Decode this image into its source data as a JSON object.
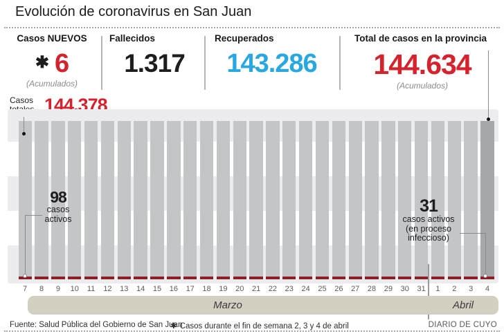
{
  "title": "Evolución de coronavirus en San Juan",
  "stats": [
    {
      "label": "Casos NUEVOS",
      "prefix": "✱",
      "value": "6",
      "sub": "(Acumulados)",
      "color": "#d5232d"
    },
    {
      "label": "Fallecidos",
      "value": "1.317",
      "color": "#1d1d1f"
    },
    {
      "label": "Recuperados",
      "value": "143.286",
      "color": "#29a7e1"
    },
    {
      "label": "Total de casos en la provincia",
      "value": "144.634",
      "sub": "(Acumulados)",
      "color": "#d5232d"
    }
  ],
  "chart": {
    "total_callout": {
      "label_line1": "Casos",
      "label_line2": "totales",
      "value": "144.378"
    },
    "annotation_left": {
      "value": "98",
      "line1": "casos",
      "line2": "activos"
    },
    "annotation_right": {
      "value": "31",
      "line1": "casos activos",
      "line2": "(en proceso",
      "line3": "infeccioso)"
    },
    "months": [
      {
        "label": "Marzo"
      },
      {
        "label": "Abril"
      }
    ]
  },
  "chart_data": {
    "type": "bar",
    "title": "Evolución de coronavirus en San Juan",
    "categories": [
      "7",
      "8",
      "9",
      "10",
      "11",
      "12",
      "13",
      "14",
      "15",
      "16",
      "17",
      "18",
      "19",
      "20",
      "21",
      "22",
      "23",
      "24",
      "25",
      "26",
      "27",
      "28",
      "29",
      "30",
      "31",
      "1",
      "2",
      "3",
      "4"
    ],
    "category_month_groups": [
      {
        "label": "Marzo",
        "from": "7",
        "to": "31",
        "count": 25
      },
      {
        "label": "Abril",
        "from": "1",
        "to": "4",
        "count": 4
      }
    ],
    "series": [
      {
        "name": "Casos totales (acumulados)",
        "color": "#c4c5c7",
        "highlight_last_color": "#a5a7aa",
        "labeled_points": [
          {
            "category": "7 Marzo",
            "value": 144378
          },
          {
            "category": "4 Abril",
            "value": 144634
          }
        ],
        "note": "all 29 bars drawn at nearly equal full height; only first and last values are labeled"
      },
      {
        "name": "Casos activos",
        "color": "#8e1e24",
        "labeled_points": [
          {
            "category": "7 Marzo",
            "value": 98
          },
          {
            "category": "4 Abril",
            "value": 31
          }
        ],
        "note": "thin dark-red segment at the base of every bar"
      }
    ],
    "legend": "none",
    "grid": "horizontal alternating light bands"
  },
  "footer": {
    "source": "Fuente: Salud Pública del Gobierno de San Juan",
    "note_asterisk": "✱",
    "note": "Casos durante el fin de semana 2, 3 y 4 de abril",
    "credit": "DIARIO DE CUYO"
  },
  "colors": {
    "red": "#d5232d",
    "blue": "#29a7e1",
    "bar_gray": "#c4c5c7",
    "bar_dark_gray": "#a5a7aa",
    "active_dark_red": "#8e1e24",
    "band_beige": "#d3cfc1",
    "chart_stripe_gray": "#ececee"
  }
}
